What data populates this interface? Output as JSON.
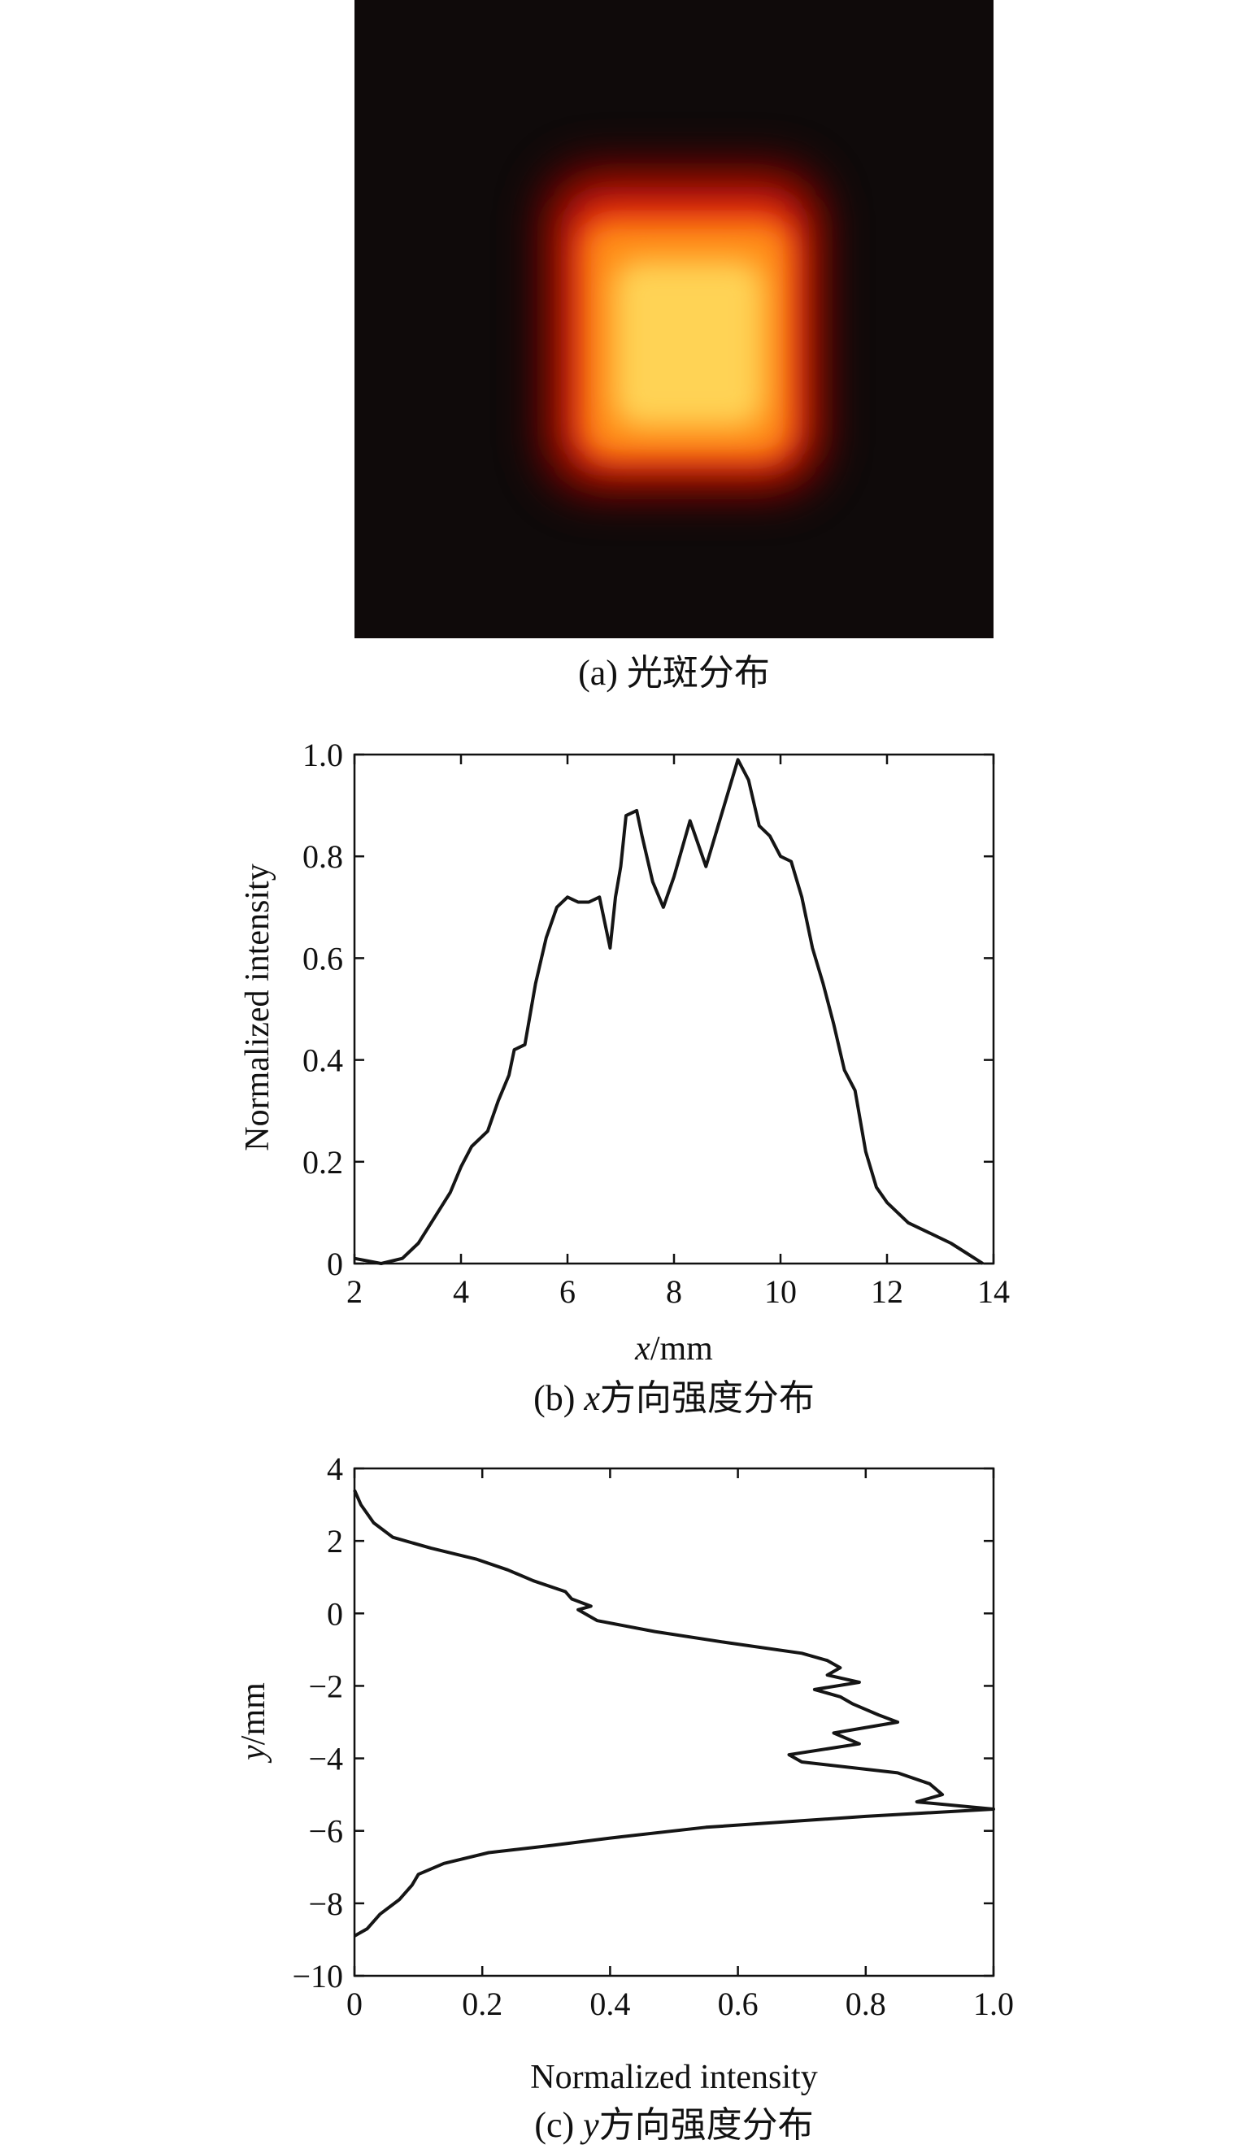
{
  "panels": {
    "a": {
      "caption_prefix": "(a) ",
      "caption_text": "光斑分布",
      "colors": {
        "background": "#0f0a0a",
        "glow_outer": "#5a0000",
        "glow_mid": "#e02008",
        "glow_inner": "#ff8a18",
        "core": "#ffe060"
      }
    },
    "b": {
      "caption_prefix": "(b) ",
      "caption_var": "x",
      "caption_text": "方向强度分布"
    },
    "c": {
      "caption_prefix": "(c) ",
      "caption_var": "y",
      "caption_text": "方向强度分布"
    }
  },
  "chart_data": [
    {
      "type": "line",
      "panel": "b",
      "xlabel_var": "x",
      "xlabel_unit": "/mm",
      "ylabel": "Normalized intensity",
      "xlim": [
        2,
        14
      ],
      "ylim": [
        0,
        1.0
      ],
      "xticks": [
        {
          "v": 2,
          "label": "2"
        },
        {
          "v": 4,
          "label": "4"
        },
        {
          "v": 6,
          "label": "6"
        },
        {
          "v": 8,
          "label": "8"
        },
        {
          "v": 10,
          "label": "10"
        },
        {
          "v": 12,
          "label": "12"
        },
        {
          "v": 14,
          "label": "14"
        }
      ],
      "yticks": [
        {
          "v": 0,
          "label": "0"
        },
        {
          "v": 0.2,
          "label": "0.2"
        },
        {
          "v": 0.4,
          "label": "0.4"
        },
        {
          "v": 0.6,
          "label": "0.6"
        },
        {
          "v": 0.8,
          "label": "0.8"
        },
        {
          "v": 1.0,
          "label": "1.0"
        }
      ],
      "x": [
        2.0,
        2.5,
        2.9,
        3.2,
        3.5,
        3.8,
        4.0,
        4.2,
        4.5,
        4.7,
        4.9,
        5.0,
        5.2,
        5.4,
        5.6,
        5.8,
        6.0,
        6.2,
        6.4,
        6.6,
        6.8,
        6.9,
        7.0,
        7.1,
        7.3,
        7.4,
        7.6,
        7.8,
        8.0,
        8.3,
        8.6,
        8.8,
        9.0,
        9.2,
        9.4,
        9.6,
        9.8,
        10.0,
        10.2,
        10.4,
        10.6,
        10.8,
        11.0,
        11.2,
        11.4,
        11.6,
        11.8,
        12.0,
        12.4,
        12.8,
        13.2,
        13.5,
        13.8
      ],
      "y": [
        0.01,
        0.0,
        0.01,
        0.04,
        0.09,
        0.14,
        0.19,
        0.23,
        0.26,
        0.32,
        0.37,
        0.42,
        0.43,
        0.55,
        0.64,
        0.7,
        0.72,
        0.71,
        0.71,
        0.72,
        0.62,
        0.72,
        0.78,
        0.88,
        0.89,
        0.84,
        0.75,
        0.7,
        0.76,
        0.87,
        0.78,
        0.85,
        0.92,
        0.99,
        0.95,
        0.86,
        0.84,
        0.8,
        0.79,
        0.72,
        0.62,
        0.55,
        0.47,
        0.38,
        0.34,
        0.22,
        0.15,
        0.12,
        0.08,
        0.06,
        0.04,
        0.02,
        0.0
      ]
    },
    {
      "type": "line",
      "panel": "c",
      "xlabel": "Normalized intensity",
      "ylabel_var": "y",
      "ylabel_unit": "/mm",
      "xlim": [
        0,
        1.0
      ],
      "ylim": [
        -10,
        4
      ],
      "xticks": [
        {
          "v": 0,
          "label": "0"
        },
        {
          "v": 0.2,
          "label": "0.2"
        },
        {
          "v": 0.4,
          "label": "0.4"
        },
        {
          "v": 0.6,
          "label": "0.6"
        },
        {
          "v": 0.8,
          "label": "0.8"
        },
        {
          "v": 1.0,
          "label": "1.0"
        }
      ],
      "yticks": [
        {
          "v": 4,
          "label": "4"
        },
        {
          "v": 2,
          "label": "2"
        },
        {
          "v": 0,
          "label": "0"
        },
        {
          "v": -2,
          "label": "−2"
        },
        {
          "v": -4,
          "label": "−4"
        },
        {
          "v": -6,
          "label": "−6"
        },
        {
          "v": -8,
          "label": "−8"
        },
        {
          "v": -10,
          "label": "−10"
        }
      ],
      "y": [
        3.4,
        3.0,
        2.5,
        2.1,
        1.8,
        1.5,
        1.2,
        0.9,
        0.6,
        0.4,
        0.2,
        0.1,
        -0.2,
        -0.5,
        -0.8,
        -1.1,
        -1.3,
        -1.5,
        -1.7,
        -1.9,
        -2.1,
        -2.3,
        -2.5,
        -2.8,
        -3.0,
        -3.3,
        -3.6,
        -3.9,
        -4.1,
        -4.4,
        -4.7,
        -5.0,
        -5.2,
        -5.4,
        -5.6,
        -5.9,
        -6.2,
        -6.4,
        -6.6,
        -6.9,
        -7.2,
        -7.5,
        -7.9,
        -8.3,
        -8.7,
        -8.9
      ],
      "x": [
        0.0,
        0.01,
        0.03,
        0.06,
        0.12,
        0.19,
        0.24,
        0.28,
        0.33,
        0.34,
        0.37,
        0.35,
        0.38,
        0.47,
        0.58,
        0.7,
        0.74,
        0.76,
        0.74,
        0.79,
        0.72,
        0.76,
        0.78,
        0.82,
        0.85,
        0.75,
        0.79,
        0.68,
        0.7,
        0.85,
        0.9,
        0.92,
        0.88,
        1.0,
        0.8,
        0.55,
        0.4,
        0.31,
        0.21,
        0.14,
        0.1,
        0.09,
        0.07,
        0.04,
        0.02,
        0.0
      ]
    }
  ]
}
